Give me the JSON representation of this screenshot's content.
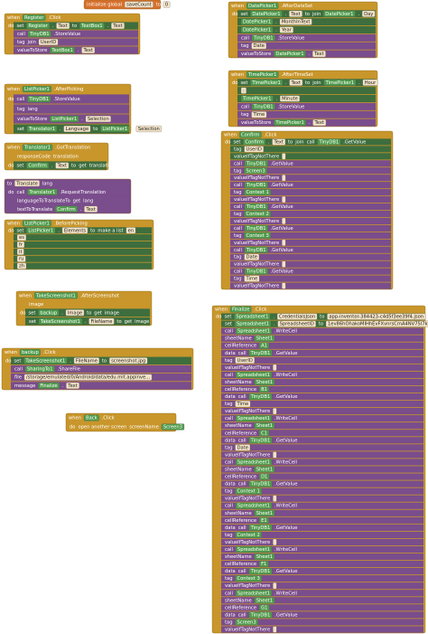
{
  "blocks": [
    {
      "rows": [
        [
          "initialize global",
          "saveCount",
          "to",
          "0"
        ]
      ]
    },
    {
      "rows": [
        [
          "when",
          "Register",
          ".Click"
        ],
        [
          "do",
          "set",
          "Register",
          ".",
          "Text",
          "to",
          "TextBox1",
          ".",
          "Text"
        ],
        [
          "call",
          "TinyDB1",
          ".StoreValue"
        ],
        [
          "tag",
          "join",
          "UserID"
        ],
        [
          "valueToStore",
          "TextBox1",
          ".",
          "Text"
        ]
      ]
    },
    {
      "rows": [
        [
          "when",
          "DatePicker1",
          ".AfterDateSet"
        ],
        [
          "do",
          "set",
          "DatePicker1",
          ".",
          "Text",
          "to",
          "join",
          "DatePicker1",
          ".",
          "Day"
        ],
        [
          "DatePicker1",
          ".",
          "MonthInText"
        ],
        [
          "DatePicker1",
          ".",
          "Year"
        ],
        [
          "call",
          "TinyDB1",
          ".StoreValue"
        ],
        [
          "tag",
          "Date"
        ],
        [
          "valueToStore",
          "DatePicker1",
          ".",
          "Text"
        ]
      ]
    },
    {
      "rows": [
        [
          "when",
          "ListPicker1",
          ".AfterPicking"
        ],
        [
          "do",
          "call",
          "TinyDB1",
          ".StoreValue"
        ],
        [
          "tag",
          "lang"
        ],
        [
          "valueToStore",
          "ListPicker1",
          ".",
          "Selection"
        ],
        [
          "set",
          "Translator1",
          ".",
          "Language",
          "to",
          "ListPicker1",
          ".",
          "Selection"
        ]
      ]
    },
    {
      "rows": [
        [
          "when",
          "TimePicker1",
          ".AfterTimeSet"
        ],
        [
          "do",
          "set",
          "TimePicker1",
          ".",
          "Text",
          "to",
          "join",
          "TimePicker1",
          ".",
          "Hour"
        ],
        [
          ":"
        ],
        [
          "TimePicker1",
          ".",
          "Minute"
        ],
        [
          "call",
          "TinyDB1",
          ".StoreValue"
        ],
        [
          "tag",
          "Time"
        ],
        [
          "valueToStore",
          "TimePicker1",
          ".",
          "Text"
        ]
      ]
    },
    {
      "rows": [
        [
          "when",
          "Translator1",
          ".GotTranslation"
        ],
        [
          "responseCode",
          "translation"
        ],
        [
          "do",
          "set",
          "Confirm",
          ".",
          "Text",
          "to",
          "get",
          "translation"
        ]
      ]
    },
    {
      "rows": [
        [
          "when",
          "Confirm",
          ".Click"
        ],
        [
          "do",
          "set",
          "Confirm",
          ".",
          "Text",
          "to",
          "join",
          "call",
          "TinyDB1",
          ".GetValue"
        ],
        [
          "tag",
          "UserID"
        ],
        [
          "valueIfTagNotThere",
          " "
        ],
        [
          "call",
          "TinyDB1",
          ".GetValue"
        ],
        [
          "tag",
          "Screen3"
        ],
        [
          "valueIfTagNotThere",
          " "
        ],
        [
          "call",
          "TinyDB1",
          ".GetValue"
        ],
        [
          "tag",
          "Context 1"
        ],
        [
          "valueIfTagNotThere",
          " "
        ],
        [
          "call",
          "TinyDB1",
          ".GetValue"
        ],
        [
          "tag",
          "Context 2"
        ],
        [
          "valueIfTagNotThere",
          " "
        ],
        [
          "call",
          "TinyDB1",
          ".GetValue"
        ],
        [
          "tag",
          "Context 3"
        ],
        [
          "valueIfTagNotThere",
          " "
        ],
        [
          "call",
          "TinyDB1",
          ".GetValue"
        ],
        [
          "tag",
          "Date"
        ],
        [
          "valueIfTagNotThere",
          " "
        ],
        [
          "call",
          "TinyDB1",
          ".GetValue"
        ],
        [
          "tag",
          "Time"
        ],
        [
          "valueIfTagNotThere",
          " "
        ]
      ]
    },
    {
      "rows": [
        [
          "to",
          "Translate",
          "lang"
        ],
        [
          "do",
          "call",
          "Translator1",
          ".RequestTranslation"
        ],
        [
          "languageToTranslateTo",
          "get",
          "lang"
        ],
        [
          "textToTranslate",
          "Confirm",
          ".",
          "Text"
        ]
      ]
    },
    {
      "rows": [
        [
          "when",
          "ListPicker1",
          ".BeforePicking"
        ],
        [
          "do",
          "set",
          "ListPicker1",
          ".",
          "Elements",
          "to",
          "make a list",
          "en"
        ],
        [
          "es"
        ],
        [
          "fr"
        ],
        [
          "it"
        ],
        [
          "ru"
        ],
        [
          "zh"
        ]
      ]
    },
    {
      "rows": [
        [
          "when",
          "TakeScreenshot1",
          ".AfterScreenshot"
        ],
        [
          "image"
        ],
        [
          "do",
          "set",
          "backup",
          ".",
          "Image",
          "to",
          "get",
          "image"
        ],
        [
          "set",
          "TakeScreenshot1",
          ".",
          "FileName",
          "to",
          "get",
          "image"
        ]
      ]
    },
    {
      "rows": [
        [
          "when",
          "backup",
          ".Click"
        ],
        [
          "do",
          "set",
          "TakeScreenshot1",
          ".",
          "FileName",
          "to",
          "screenshot.jpg"
        ],
        [
          "call",
          "SharingTo1",
          ".ShareFile"
        ],
        [
          "file",
          "/storage/emulated/0/Android/data/edu.mit.appinve..."
        ],
        [
          "message",
          "Finalize",
          ".",
          "Text"
        ]
      ]
    },
    {
      "rows": [
        [
          "when",
          "Back",
          ".Click"
        ],
        [
          "do",
          "open another screen",
          "screenName",
          "Screen3"
        ]
      ]
    },
    {
      "rows": [
        [
          "when",
          "Finalize",
          ".Click"
        ],
        [
          "do",
          "set",
          "Spreadsheet1",
          ".",
          "CredentialsJson",
          "to",
          "app-inventor-384423-c4d5f3ee39f4.json"
        ],
        [
          "set",
          "Spreadsheet1",
          ".",
          "SpreadsheetID",
          "to",
          "1ev86hOhakoMIHhEvFXvnrsCmA4NV75I7kFsw"
        ],
        [
          "call",
          "Spreadsheet1",
          ".WriteCell"
        ],
        [
          "sheetName",
          "Sheet1"
        ],
        [
          "cellReference",
          "A1"
        ],
        [
          "data",
          "call",
          "TinyDB1",
          ".GetValue"
        ],
        [
          "tag",
          "UserID"
        ],
        [
          "valueIfTagNotThere",
          " "
        ],
        [
          "call",
          "Spreadsheet1",
          ".WriteCell"
        ],
        [
          "sheetName",
          "Sheet1"
        ],
        [
          "cellReference",
          "B1"
        ],
        [
          "data",
          "call",
          "TinyDB1",
          ".GetValue"
        ],
        [
          "tag",
          "Time"
        ],
        [
          "valueIfTagNotThere",
          " "
        ],
        [
          "call",
          "Spreadsheet1",
          ".WriteCell"
        ],
        [
          "sheetName",
          "Sheet1"
        ],
        [
          "cellReference",
          "C1"
        ],
        [
          "data",
          "call",
          "TinyDB1",
          ".GetValue"
        ],
        [
          "tag",
          "Date"
        ],
        [
          "valueIfTagNotThere",
          " "
        ],
        [
          "call",
          "Spreadsheet1",
          ".WriteCell"
        ],
        [
          "sheetName",
          "Sheet1"
        ],
        [
          "cellReference",
          "D1"
        ],
        [
          "data",
          "call",
          "TinyDB1",
          ".GetValue"
        ],
        [
          "tag",
          "Context 1"
        ],
        [
          "valueIfTagNotThere",
          " "
        ],
        [
          "call",
          "Spreadsheet1",
          ".WriteCell"
        ],
        [
          "sheetName",
          "Sheet1"
        ],
        [
          "cellReference",
          "E1"
        ],
        [
          "data",
          "call",
          "TinyDB1",
          ".GetValue"
        ],
        [
          "tag",
          "Context 2"
        ],
        [
          "valueIfTagNotThere",
          " "
        ],
        [
          "call",
          "Spreadsheet1",
          ".WriteCell"
        ],
        [
          "sheetName",
          "Sheet1"
        ],
        [
          "cellReference",
          "F1"
        ],
        [
          "data",
          "call",
          "TinyDB1",
          ".GetValue"
        ],
        [
          "tag",
          "Context 3"
        ],
        [
          "valueIfTagNotThere",
          " "
        ],
        [
          "call",
          "Spreadsheet1",
          ".WriteCell"
        ],
        [
          "sheetName",
          "Sheet1"
        ],
        [
          "cellReference",
          "G1"
        ],
        [
          "data",
          "call",
          "TinyDB1",
          ".GetValue"
        ],
        [
          "tag",
          "Screen3"
        ],
        [
          "valueIfTagNotThere",
          " "
        ]
      ]
    }
  ]
}
